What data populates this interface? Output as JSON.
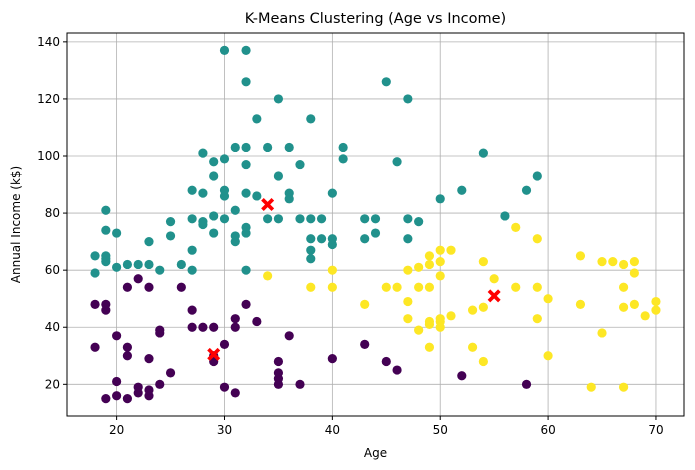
{
  "chart_data": {
    "type": "scatter",
    "title": "K-Means Clustering (Age vs Income)",
    "xlabel": "Age",
    "ylabel": "Annual Income (k$)",
    "xlim": [
      15.4,
      72.6
    ],
    "ylim": [
      8.9,
      143.1
    ],
    "xticks": [
      20,
      30,
      40,
      50,
      60,
      70
    ],
    "yticks": [
      20,
      40,
      60,
      80,
      100,
      120,
      140
    ],
    "grid": true,
    "colors": {
      "cluster_0": "#440154",
      "cluster_1": "#21918c",
      "cluster_2": "#fde725",
      "centroid": "#ff0000"
    },
    "series": [
      {
        "cluster": 0,
        "color": "#440154",
        "points": [
          [
            18,
            33
          ],
          [
            18,
            48
          ],
          [
            19,
            15
          ],
          [
            19,
            46
          ],
          [
            19,
            48
          ],
          [
            20,
            16
          ],
          [
            20,
            21
          ],
          [
            20,
            37
          ],
          [
            21,
            15
          ],
          [
            21,
            30
          ],
          [
            21,
            33
          ],
          [
            21,
            54
          ],
          [
            22,
            17
          ],
          [
            22,
            19
          ],
          [
            22,
            57
          ],
          [
            23,
            16
          ],
          [
            23,
            18
          ],
          [
            23,
            29
          ],
          [
            23,
            54
          ],
          [
            24,
            20
          ],
          [
            24,
            38
          ],
          [
            24,
            39
          ],
          [
            25,
            24
          ],
          [
            26,
            54
          ],
          [
            27,
            40
          ],
          [
            27,
            46
          ],
          [
            28,
            40
          ],
          [
            29,
            28
          ],
          [
            29,
            30
          ],
          [
            29,
            40
          ],
          [
            30,
            19
          ],
          [
            30,
            34
          ],
          [
            31,
            17
          ],
          [
            31,
            40
          ],
          [
            31,
            43
          ],
          [
            32,
            48
          ],
          [
            33,
            42
          ],
          [
            35,
            20
          ],
          [
            35,
            22
          ],
          [
            35,
            24
          ],
          [
            35,
            28
          ],
          [
            36,
            37
          ],
          [
            37,
            20
          ],
          [
            40,
            29
          ],
          [
            43,
            34
          ],
          [
            45,
            28
          ],
          [
            46,
            25
          ],
          [
            52,
            23
          ],
          [
            58,
            20
          ]
        ]
      },
      {
        "cluster": 1,
        "color": "#21918c",
        "points": [
          [
            18,
            59
          ],
          [
            18,
            65
          ],
          [
            19,
            63
          ],
          [
            19,
            64
          ],
          [
            19,
            65
          ],
          [
            19,
            74
          ],
          [
            19,
            81
          ],
          [
            20,
            61
          ],
          [
            20,
            73
          ],
          [
            21,
            62
          ],
          [
            22,
            62
          ],
          [
            23,
            62
          ],
          [
            23,
            70
          ],
          [
            24,
            60
          ],
          [
            25,
            72
          ],
          [
            25,
            77
          ],
          [
            26,
            62
          ],
          [
            27,
            60
          ],
          [
            27,
            67
          ],
          [
            27,
            78
          ],
          [
            27,
            88
          ],
          [
            28,
            76
          ],
          [
            28,
            77
          ],
          [
            28,
            87
          ],
          [
            28,
            101
          ],
          [
            29,
            73
          ],
          [
            29,
            79
          ],
          [
            29,
            93
          ],
          [
            29,
            98
          ],
          [
            30,
            78
          ],
          [
            30,
            86
          ],
          [
            30,
            88
          ],
          [
            30,
            99
          ],
          [
            30,
            137
          ],
          [
            31,
            70
          ],
          [
            31,
            72
          ],
          [
            31,
            81
          ],
          [
            31,
            103
          ],
          [
            32,
            60
          ],
          [
            32,
            73
          ],
          [
            32,
            75
          ],
          [
            32,
            87
          ],
          [
            32,
            97
          ],
          [
            32,
            103
          ],
          [
            32,
            126
          ],
          [
            32,
            137
          ],
          [
            33,
            86
          ],
          [
            33,
            113
          ],
          [
            34,
            78
          ],
          [
            34,
            103
          ],
          [
            35,
            78
          ],
          [
            35,
            93
          ],
          [
            35,
            120
          ],
          [
            36,
            85
          ],
          [
            36,
            87
          ],
          [
            36,
            103
          ],
          [
            37,
            78
          ],
          [
            37,
            97
          ],
          [
            38,
            64
          ],
          [
            38,
            67
          ],
          [
            38,
            71
          ],
          [
            38,
            78
          ],
          [
            38,
            113
          ],
          [
            39,
            71
          ],
          [
            39,
            78
          ],
          [
            40,
            69
          ],
          [
            40,
            71
          ],
          [
            40,
            87
          ],
          [
            41,
            99
          ],
          [
            41,
            103
          ],
          [
            43,
            71
          ],
          [
            43,
            78
          ],
          [
            44,
            73
          ],
          [
            44,
            78
          ],
          [
            45,
            126
          ],
          [
            46,
            98
          ],
          [
            47,
            71
          ],
          [
            47,
            78
          ],
          [
            47,
            120
          ],
          [
            48,
            77
          ],
          [
            50,
            85
          ],
          [
            52,
            88
          ],
          [
            54,
            101
          ],
          [
            56,
            79
          ],
          [
            58,
            88
          ],
          [
            59,
            93
          ]
        ]
      },
      {
        "cluster": 2,
        "color": "#fde725",
        "points": [
          [
            34,
            58
          ],
          [
            38,
            54
          ],
          [
            40,
            60
          ],
          [
            40,
            54
          ],
          [
            43,
            48
          ],
          [
            45,
            54
          ],
          [
            46,
            54
          ],
          [
            47,
            43
          ],
          [
            47,
            49
          ],
          [
            47,
            60
          ],
          [
            48,
            39
          ],
          [
            48,
            54
          ],
          [
            48,
            61
          ],
          [
            49,
            33
          ],
          [
            49,
            41
          ],
          [
            49,
            42
          ],
          [
            49,
            54
          ],
          [
            49,
            62
          ],
          [
            49,
            65
          ],
          [
            50,
            40
          ],
          [
            50,
            42
          ],
          [
            50,
            43
          ],
          [
            50,
            58
          ],
          [
            50,
            63
          ],
          [
            50,
            67
          ],
          [
            51,
            44
          ],
          [
            51,
            67
          ],
          [
            53,
            33
          ],
          [
            53,
            46
          ],
          [
            54,
            28
          ],
          [
            54,
            47
          ],
          [
            54,
            63
          ],
          [
            55,
            57
          ],
          [
            57,
            54
          ],
          [
            57,
            75
          ],
          [
            59,
            43
          ],
          [
            59,
            54
          ],
          [
            59,
            71
          ],
          [
            60,
            30
          ],
          [
            60,
            50
          ],
          [
            63,
            48
          ],
          [
            63,
            65
          ],
          [
            64,
            19
          ],
          [
            65,
            38
          ],
          [
            65,
            63
          ],
          [
            66,
            63
          ],
          [
            67,
            19
          ],
          [
            67,
            47
          ],
          [
            67,
            54
          ],
          [
            67,
            62
          ],
          [
            68,
            48
          ],
          [
            68,
            59
          ],
          [
            68,
            63
          ],
          [
            69,
            44
          ],
          [
            70,
            46
          ],
          [
            70,
            49
          ]
        ]
      }
    ],
    "centroids": [
      [
        29,
        30.5
      ],
      [
        34,
        83
      ],
      [
        55,
        51
      ]
    ]
  }
}
